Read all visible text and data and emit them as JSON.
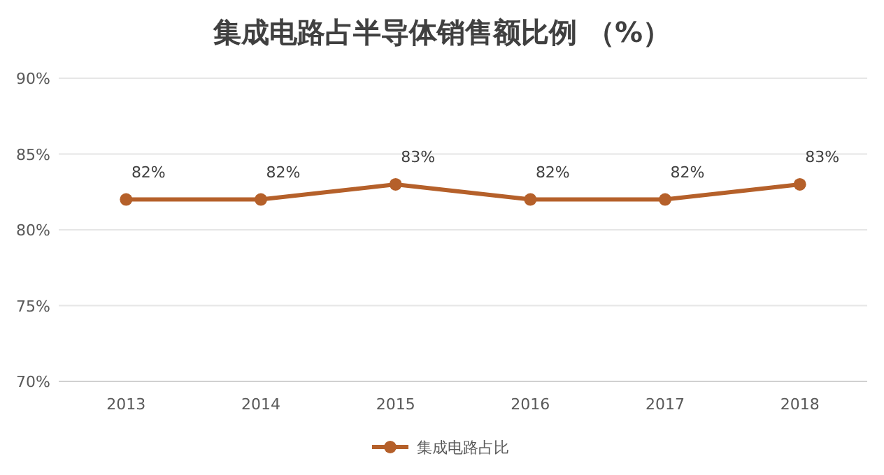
{
  "chart_data": {
    "type": "line",
    "title": "集成电路占半导体销售额比例 （%）",
    "categories": [
      "2013",
      "2014",
      "2015",
      "2016",
      "2017",
      "2018"
    ],
    "series": [
      {
        "name": "集成电路占比",
        "color": "#b5602a",
        "values": [
          82,
          82,
          83,
          82,
          82,
          83
        ],
        "value_labels": [
          "82%",
          "82%",
          "83%",
          "82%",
          "82%",
          "83%"
        ]
      }
    ],
    "ylim": [
      70,
      90
    ],
    "yticks": [
      {
        "value": 70,
        "label": "70%"
      },
      {
        "value": 75,
        "label": "75%"
      },
      {
        "value": 80,
        "label": "80%"
      },
      {
        "value": 85,
        "label": "85%"
      },
      {
        "value": 90,
        "label": "90%"
      }
    ],
    "grid": "y",
    "legend": "bottom",
    "marker": "circle",
    "line_style": "solid"
  }
}
